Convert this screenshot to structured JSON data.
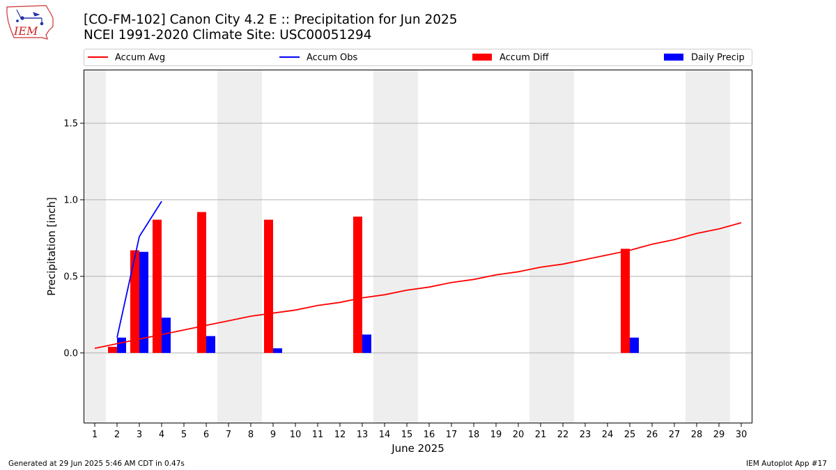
{
  "header": {
    "title": "[CO-FM-102] Canon City 4.2 E :: Precipitation for Jun 2025",
    "subtitle": "NCEI 1991-2020 Climate Site: USC00051294",
    "logo_text": "IEM"
  },
  "footer": {
    "generated": "Generated at 29 Jun 2025 5:46 AM CDT in 0.47s",
    "app": "IEM Autoplot App #17"
  },
  "colors": {
    "accum_avg": "#ff0000",
    "accum_obs": "#0000ff",
    "accum_diff": "#ff0000",
    "daily_precip": "#0000ff",
    "weekend_band": "#eeeeee",
    "grid": "#b0b0b0"
  },
  "chart_data": {
    "type": "bar",
    "xlabel": "June 2025",
    "ylabel": "Precipitation [inch]",
    "xlim": [
      0.5,
      30.5
    ],
    "ylim": [
      -0.46,
      1.85
    ],
    "x_ticks": [
      1,
      2,
      3,
      4,
      5,
      6,
      7,
      8,
      9,
      10,
      11,
      12,
      13,
      14,
      15,
      16,
      17,
      18,
      19,
      20,
      21,
      22,
      23,
      24,
      25,
      26,
      27,
      28,
      29,
      30
    ],
    "y_ticks": [
      0.0,
      0.5,
      1.0,
      1.5
    ],
    "y_tick_labels": [
      "0.0",
      "0.5",
      "1.0",
      "1.5"
    ],
    "grid": "horizontal",
    "legend_position": "top",
    "weekend_bands": [
      [
        0.5,
        1.5
      ],
      [
        6.5,
        8.5
      ],
      [
        13.5,
        15.5
      ],
      [
        20.5,
        22.5
      ],
      [
        27.5,
        29.5
      ]
    ],
    "series": [
      {
        "name": "Accum Avg",
        "kind": "line",
        "x": [
          1,
          2,
          3,
          4,
          5,
          6,
          7,
          8,
          9,
          10,
          11,
          12,
          13,
          14,
          15,
          16,
          17,
          18,
          19,
          20,
          21,
          22,
          23,
          24,
          25,
          26,
          27,
          28,
          29,
          30
        ],
        "values": [
          0.03,
          0.06,
          0.09,
          0.12,
          0.15,
          0.18,
          0.21,
          0.24,
          0.26,
          0.28,
          0.31,
          0.33,
          0.36,
          0.38,
          0.41,
          0.43,
          0.46,
          0.48,
          0.51,
          0.53,
          0.56,
          0.58,
          0.61,
          0.64,
          0.67,
          0.71,
          0.74,
          0.78,
          0.81,
          0.85
        ]
      },
      {
        "name": "Accum Obs",
        "kind": "line",
        "x": [
          2,
          3,
          4
        ],
        "values": [
          0.1,
          0.76,
          0.99
        ]
      },
      {
        "name": "Accum Diff",
        "kind": "bar",
        "x": [
          2,
          3,
          4,
          6,
          9,
          13,
          25
        ],
        "values": [
          0.04,
          0.67,
          0.87,
          0.92,
          0.87,
          0.89,
          0.68
        ]
      },
      {
        "name": "Daily Precip",
        "kind": "bar",
        "x": [
          2,
          3,
          4,
          6,
          9,
          13,
          25
        ],
        "values": [
          0.1,
          0.66,
          0.23,
          0.11,
          0.03,
          0.12,
          0.1
        ]
      }
    ]
  }
}
